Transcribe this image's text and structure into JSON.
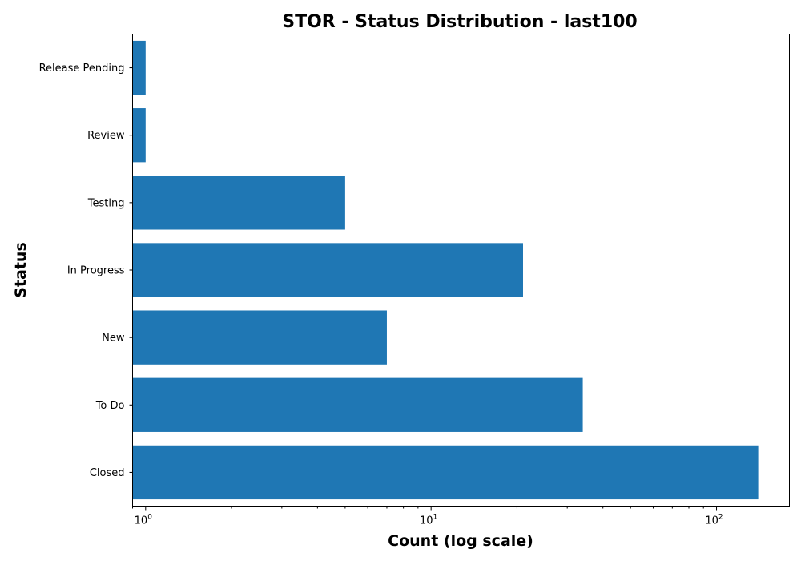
{
  "chart_data": {
    "type": "bar",
    "orientation": "horizontal",
    "title": "STOR - Status Distribution - last100",
    "xlabel": "Count (log scale)",
    "ylabel": "Status",
    "x_scale": "log",
    "xlim": [
      0.9,
      180
    ],
    "grid": false,
    "categories": [
      "Closed",
      "To Do",
      "New",
      "In Progress",
      "Testing",
      "Review",
      "Release Pending"
    ],
    "values": [
      140,
      34,
      7,
      21,
      5,
      1,
      1
    ],
    "x_ticks": [
      {
        "value": 1,
        "base": "10",
        "exp": "0"
      },
      {
        "value": 10,
        "base": "10",
        "exp": "1"
      },
      {
        "value": 100,
        "base": "10",
        "exp": "2"
      }
    ],
    "bar_color": "#1f77b4"
  }
}
